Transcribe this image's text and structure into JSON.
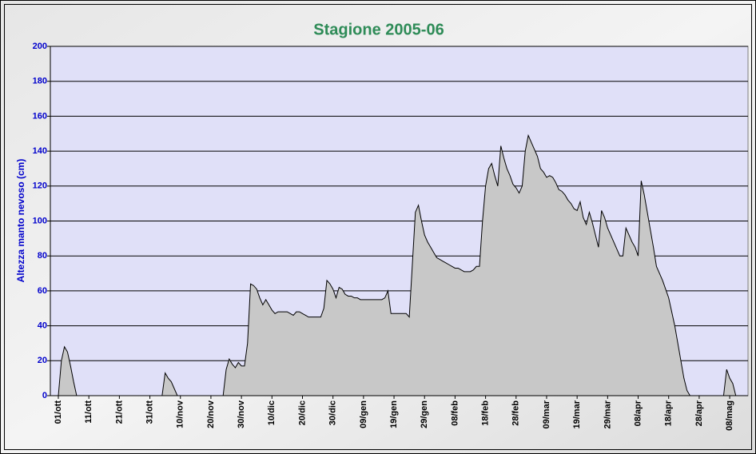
{
  "chart_data": {
    "type": "area",
    "title": "Stagione 2005-06",
    "y_label": "Altezza manto nevoso (cm)",
    "categories": [
      "01/ott",
      null,
      null,
      null,
      null,
      null,
      null,
      null,
      null,
      null,
      "11/ott",
      null,
      null,
      null,
      null,
      null,
      null,
      null,
      null,
      null,
      "21/ott",
      null,
      null,
      null,
      null,
      null,
      null,
      null,
      null,
      null,
      "31/ott",
      null,
      null,
      null,
      null,
      null,
      null,
      null,
      null,
      null,
      "10/nov",
      null,
      null,
      null,
      null,
      null,
      null,
      null,
      null,
      null,
      "20/nov",
      null,
      null,
      null,
      null,
      null,
      null,
      null,
      null,
      null,
      "30/nov",
      null,
      null,
      null,
      null,
      null,
      null,
      null,
      null,
      null,
      "10/dic",
      null,
      null,
      null,
      null,
      null,
      null,
      null,
      null,
      null,
      "20/dic",
      null,
      null,
      null,
      null,
      null,
      null,
      null,
      null,
      null,
      "30/dic",
      null,
      null,
      null,
      null,
      null,
      null,
      null,
      null,
      null,
      "09/gen",
      null,
      null,
      null,
      null,
      null,
      null,
      null,
      null,
      null,
      "19/gen",
      null,
      null,
      null,
      null,
      null,
      null,
      null,
      null,
      null,
      "29/gen",
      null,
      null,
      null,
      null,
      null,
      null,
      null,
      null,
      null,
      "08/feb",
      null,
      null,
      null,
      null,
      null,
      null,
      null,
      null,
      null,
      "18/feb",
      null,
      null,
      null,
      null,
      null,
      null,
      null,
      null,
      null,
      "28/feb",
      null,
      null,
      null,
      null,
      null,
      null,
      null,
      null,
      null,
      "09/mar",
      null,
      null,
      null,
      null,
      null,
      null,
      null,
      null,
      null,
      "19/mar",
      null,
      null,
      null,
      null,
      null,
      null,
      null,
      null,
      null,
      "29/mar",
      null,
      null,
      null,
      null,
      null,
      null,
      null,
      null,
      null,
      "08/apr",
      null,
      null,
      null,
      null,
      null,
      null,
      null,
      null,
      null,
      "18/apr",
      null,
      null,
      null,
      null,
      null,
      null,
      null,
      null,
      null,
      "28/apr",
      null,
      null,
      null,
      null,
      null,
      null,
      null,
      null,
      null,
      "08/mag",
      null,
      null,
      null,
      null,
      null,
      null
    ],
    "values": [
      0,
      20,
      28,
      25,
      17,
      8,
      0,
      0,
      0,
      0,
      0,
      0,
      0,
      0,
      0,
      0,
      0,
      0,
      0,
      0,
      0,
      0,
      0,
      0,
      0,
      0,
      0,
      0,
      0,
      0,
      0,
      0,
      0,
      0,
      0,
      13,
      10,
      8,
      4,
      0,
      0,
      0,
      0,
      0,
      0,
      0,
      0,
      0,
      0,
      0,
      0,
      0,
      0,
      0,
      0,
      15,
      21,
      18,
      16,
      19,
      17,
      17,
      30,
      64,
      63,
      61,
      56,
      52,
      55,
      52,
      49,
      47,
      48,
      48,
      48,
      48,
      47,
      46,
      48,
      48,
      47,
      46,
      45,
      45,
      45,
      45,
      45,
      50,
      66,
      64,
      61,
      56,
      62,
      61,
      58,
      57,
      57,
      56,
      56,
      55,
      55,
      55,
      55,
      55,
      55,
      55,
      55,
      56,
      60,
      47,
      47,
      47,
      47,
      47,
      47,
      45,
      75,
      105,
      109,
      100,
      92,
      88,
      85,
      82,
      79,
      78,
      77,
      76,
      75,
      74,
      73,
      73,
      72,
      71,
      71,
      71,
      72,
      74,
      74,
      100,
      120,
      130,
      133,
      126,
      120,
      143,
      136,
      130,
      126,
      121,
      119,
      116,
      120,
      140,
      149,
      145,
      141,
      137,
      130,
      128,
      125,
      126,
      125,
      122,
      118,
      117,
      115,
      112,
      110,
      107,
      106,
      111,
      102,
      98,
      105,
      99,
      92,
      85,
      106,
      102,
      96,
      92,
      88,
      84,
      80,
      80,
      96,
      92,
      88,
      85,
      80,
      123,
      115,
      105,
      95,
      85,
      74,
      70,
      66,
      61,
      56,
      48,
      40,
      30,
      20,
      10,
      3,
      0,
      0,
      0,
      0,
      0,
      0,
      0,
      0,
      0,
      0,
      0,
      0,
      15,
      10,
      7,
      0,
      0,
      0,
      0,
      0
    ],
    "color": "#c8c8c8",
    "ylim": [
      0,
      200
    ],
    "yticks": [
      0,
      20,
      40,
      60,
      80,
      100,
      120,
      140,
      160,
      180,
      200
    ],
    "grid": true
  }
}
